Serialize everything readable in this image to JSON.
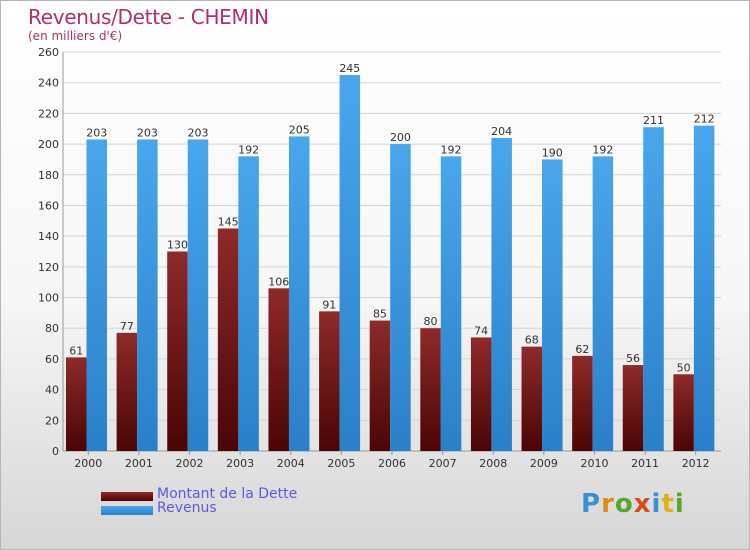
{
  "header": {
    "title": "Revenus/Dette - CHEMIN",
    "subtitle": "(en milliers d'€)"
  },
  "legend": {
    "debt_label": "Montant de la Dette",
    "revenue_label": "Revenus"
  },
  "logo": {
    "text": "Proxiti"
  },
  "colors": {
    "debt": "#7a1a1a",
    "revenue": "#3d9be0",
    "title": "#b0306a",
    "legend_text": "#5a5adf"
  },
  "chart_data": {
    "type": "bar",
    "title": "Revenus/Dette - CHEMIN",
    "subtitle": "(en milliers d'€)",
    "xlabel": "",
    "ylabel": "",
    "categories": [
      "2000",
      "2001",
      "2002",
      "2003",
      "2004",
      "2005",
      "2006",
      "2007",
      "2008",
      "2009",
      "2010",
      "2011",
      "2012"
    ],
    "series": [
      {
        "name": "Montant de la Dette",
        "values": [
          61,
          77,
          130,
          145,
          106,
          91,
          85,
          80,
          74,
          68,
          62,
          56,
          50
        ]
      },
      {
        "name": "Revenus",
        "values": [
          203,
          203,
          203,
          192,
          205,
          245,
          200,
          192,
          204,
          190,
          192,
          211,
          212
        ]
      }
    ],
    "ylim": [
      0,
      260
    ],
    "yticks": [
      0,
      20,
      40,
      60,
      80,
      100,
      120,
      140,
      160,
      180,
      200,
      220,
      240,
      260
    ],
    "grid": true,
    "legend_position": "bottom-left"
  }
}
